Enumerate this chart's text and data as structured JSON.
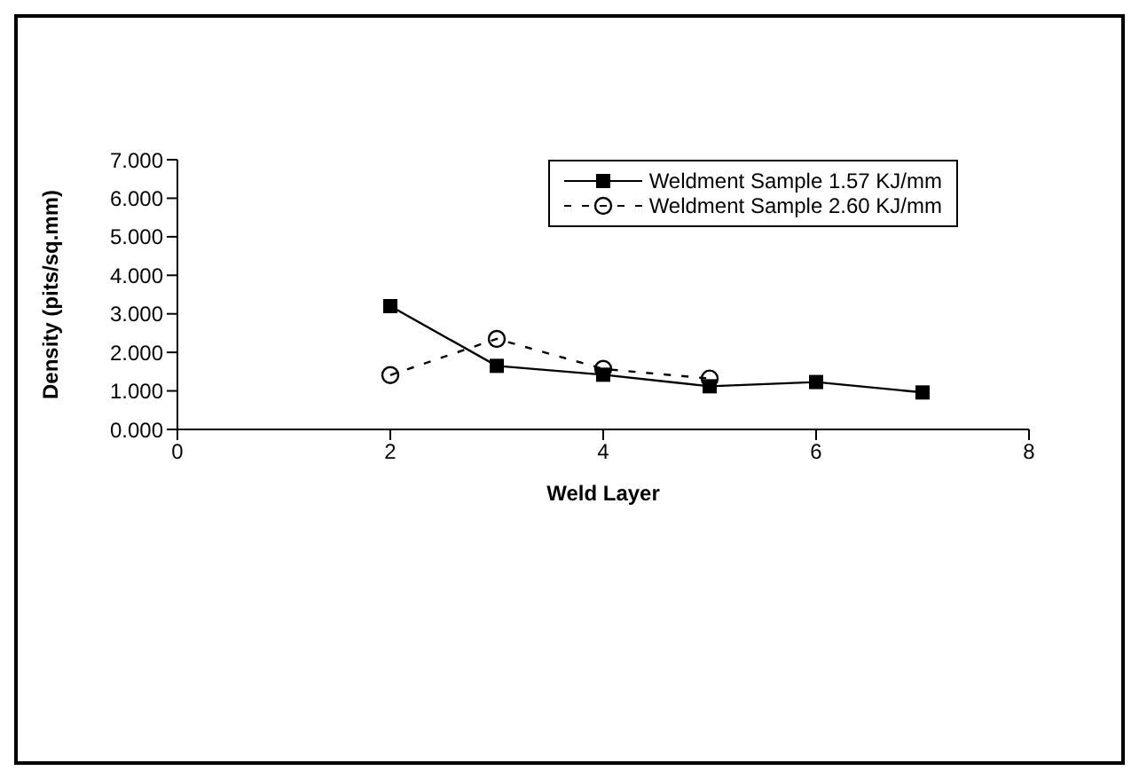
{
  "chart_data": {
    "type": "line",
    "xlabel": "Weld Layer",
    "ylabel": "Density (pits/sq.mm)",
    "xlim": [
      0,
      8
    ],
    "xticks": [
      0,
      2,
      4,
      6,
      8
    ],
    "ylim": [
      0,
      7
    ],
    "yticks": [
      {
        "value": 0,
        "label": "0.000"
      },
      {
        "value": 1,
        "label": "1.000"
      },
      {
        "value": 2,
        "label": "2.000"
      },
      {
        "value": 3,
        "label": "3.000"
      },
      {
        "value": 4,
        "label": "4.000"
      },
      {
        "value": 5,
        "label": "5.000"
      },
      {
        "value": 6,
        "label": "6.000"
      },
      {
        "value": 7,
        "label": "7.000"
      }
    ],
    "grid": false,
    "legend": "top right",
    "series": [
      {
        "name": "Weldment Sample 1.57 KJ/mm",
        "color": "#000000",
        "marker": "square",
        "line_style": "solid",
        "x": [
          2,
          3,
          4,
          5,
          6,
          7
        ],
        "values": [
          3.2,
          1.65,
          1.42,
          1.12,
          1.23,
          0.96
        ]
      },
      {
        "name": "Weldment Sample 2.60 KJ/mm",
        "color": "#000000",
        "marker": "circle",
        "line_style": "dashed",
        "x": [
          2,
          3,
          4,
          5
        ],
        "values": [
          1.41,
          2.35,
          1.57,
          1.32
        ]
      }
    ]
  }
}
